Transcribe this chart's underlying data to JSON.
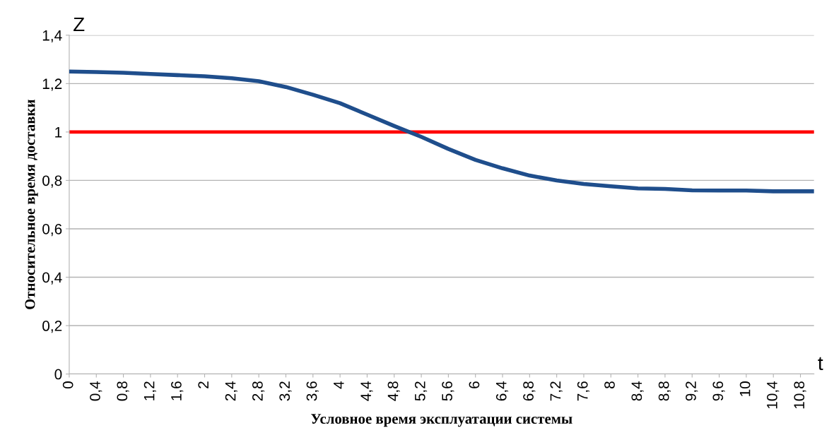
{
  "chart_data": {
    "type": "line",
    "xlabel": "Условное время эксплуатации системы",
    "ylabel": "Относительное время доставки",
    "annotations": [
      "Z",
      "t"
    ],
    "x": [
      0,
      0.4,
      0.8,
      1.2,
      1.6,
      2.0,
      2.4,
      2.8,
      3.2,
      3.6,
      4.0,
      4.4,
      4.8,
      5.2,
      5.6,
      6.0,
      6.4,
      6.8,
      7.2,
      7.6,
      8.0,
      8.4,
      8.8,
      9.2,
      9.6,
      10.0,
      10.4,
      10.8,
      11.0
    ],
    "series": [
      {
        "color": "#1f4e8c",
        "values": [
          1.25,
          1.248,
          1.245,
          1.24,
          1.235,
          1.23,
          1.222,
          1.21,
          1.186,
          1.154,
          1.119,
          1.072,
          1.025,
          0.98,
          0.93,
          0.885,
          0.85,
          0.82,
          0.8,
          0.785,
          0.776,
          0.767,
          0.765,
          0.759,
          0.758,
          0.758,
          0.755,
          0.755,
          0.755
        ]
      }
    ],
    "ref_lines": [
      {
        "axis": "y",
        "value": 1,
        "label": null,
        "color": "#ff0000"
      }
    ],
    "xlim": [
      0,
      11
    ],
    "xticks": [
      0,
      {
        "value": 0.4,
        "label": "0,4"
      },
      {
        "value": 0.8,
        "label": "0,8"
      },
      {
        "value": 1.2,
        "label": "1,2"
      },
      {
        "value": 1.6,
        "label": "1,6"
      },
      2,
      {
        "value": 2.4,
        "label": "2,4"
      },
      {
        "value": 2.8,
        "label": "2,8"
      },
      {
        "value": 3.2,
        "label": "3,2"
      },
      {
        "value": 3.6,
        "label": "3,6"
      },
      4,
      {
        "value": 4.4,
        "label": "4,4"
      },
      {
        "value": 4.8,
        "label": "4,8"
      },
      {
        "value": 5.2,
        "label": "5,2"
      },
      {
        "value": 5.6,
        "label": "5,6"
      },
      6,
      {
        "value": 6.4,
        "label": "6,4"
      },
      {
        "value": 6.8,
        "label": "6,8"
      },
      {
        "value": 7.2,
        "label": "7,2"
      },
      {
        "value": 7.6,
        "label": "7,6"
      },
      8,
      {
        "value": 8.4,
        "label": "8,4"
      },
      {
        "value": 8.8,
        "label": "8,8"
      },
      {
        "value": 9.2,
        "label": "9,2"
      },
      {
        "value": 9.6,
        "label": "9,6"
      },
      10,
      {
        "value": 10.4,
        "label": "10,4"
      },
      {
        "value": 10.8,
        "label": "10,8"
      }
    ],
    "ylim": [
      0,
      1.4
    ],
    "yticks": [
      0,
      {
        "value": 0.2,
        "label": "0,2"
      },
      {
        "value": 0.4,
        "label": "0,4"
      },
      {
        "value": 0.6,
        "label": "0,6"
      },
      {
        "value": 0.8,
        "label": "0,8"
      },
      1,
      {
        "value": 1.2,
        "label": "1,2"
      },
      {
        "value": 1.4,
        "label": "1,4"
      }
    ],
    "grid": "y",
    "legend": false,
    "line_style": "solid",
    "marker": "none"
  }
}
